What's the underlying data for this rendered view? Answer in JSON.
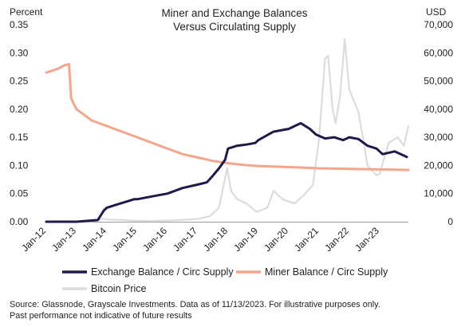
{
  "chart_data": {
    "type": "line",
    "title": "Miner and Exchange Balances",
    "subtitle": "Versus Circulating Supply",
    "y_left_label": "Percent",
    "y_right_label": "USD",
    "y_left_ticks": [
      "0.00",
      "0.05",
      "0.10",
      "0.15",
      "0.20",
      "0.25",
      "0.30",
      "0.35"
    ],
    "y_right_ticks": [
      "0",
      "10,000",
      "20,000",
      "30,000",
      "40,000",
      "50,000",
      "60,000",
      "70,000"
    ],
    "x_ticks": [
      "Jan-12",
      "Jan-13",
      "Jan-14",
      "Jan-15",
      "Jan-16",
      "Jan-17",
      "Jan-18",
      "Jan-19",
      "Jan-20",
      "Jan-21",
      "Jan-22",
      "Jan-23"
    ],
    "ylim_left": [
      0,
      0.35
    ],
    "ylim_right": [
      0,
      70000
    ],
    "xlim": [
      2012.0,
      2023.95
    ],
    "grid": false,
    "legend_position": "bottom",
    "series": [
      {
        "name": "Exchange Balance / Circ Supply",
        "axis": "left",
        "color": "#1f1a4a",
        "x": [
          2012.0,
          2013.0,
          2013.7,
          2013.9,
          2014.0,
          2014.3,
          2014.6,
          2014.9,
          2015.0,
          2015.5,
          2016.0,
          2016.5,
          2017.0,
          2017.3,
          2017.5,
          2017.7,
          2017.9,
          2018.0,
          2018.3,
          2018.6,
          2018.9,
          2019.0,
          2019.5,
          2020.0,
          2020.2,
          2020.4,
          2020.7,
          2020.9,
          2021.2,
          2021.5,
          2021.8,
          2022.0,
          2022.3,
          2022.6,
          2022.9,
          2023.1,
          2023.5,
          2023.9
        ],
        "y": [
          0.0,
          0.0,
          0.003,
          0.02,
          0.025,
          0.03,
          0.035,
          0.04,
          0.04,
          0.045,
          0.05,
          0.06,
          0.066,
          0.07,
          0.082,
          0.095,
          0.11,
          0.13,
          0.135,
          0.137,
          0.14,
          0.145,
          0.16,
          0.165,
          0.17,
          0.175,
          0.165,
          0.155,
          0.148,
          0.15,
          0.145,
          0.15,
          0.147,
          0.135,
          0.13,
          0.12,
          0.125,
          0.115
        ]
      },
      {
        "name": "Miner Balance / Circ Supply",
        "axis": "left",
        "color": "#f4a58a",
        "x": [
          2012.0,
          2012.4,
          2012.6,
          2012.75,
          2012.82,
          2012.9,
          2013.0,
          2013.5,
          2014.0,
          2014.5,
          2015.0,
          2015.5,
          2016.0,
          2016.5,
          2017.0,
          2017.5,
          2018.0,
          2018.5,
          2019.0,
          2020.0,
          2021.0,
          2022.0,
          2023.0,
          2023.95
        ],
        "y": [
          0.265,
          0.272,
          0.278,
          0.28,
          0.22,
          0.21,
          0.2,
          0.18,
          0.17,
          0.16,
          0.15,
          0.14,
          0.13,
          0.12,
          0.114,
          0.108,
          0.104,
          0.101,
          0.099,
          0.097,
          0.095,
          0.094,
          0.093,
          0.092
        ]
      },
      {
        "name": "Bitcoin Price",
        "axis": "right",
        "color": "#dcdcdc",
        "x": [
          2012.0,
          2013.0,
          2013.3,
          2013.5,
          2013.9,
          2014.0,
          2014.5,
          2015.0,
          2015.5,
          2016.0,
          2016.5,
          2017.0,
          2017.4,
          2017.7,
          2017.97,
          2018.1,
          2018.3,
          2018.6,
          2018.95,
          2019.3,
          2019.5,
          2019.8,
          2020.0,
          2020.2,
          2020.5,
          2020.8,
          2021.0,
          2021.2,
          2021.3,
          2021.45,
          2021.55,
          2021.7,
          2021.85,
          2022.0,
          2022.3,
          2022.45,
          2022.6,
          2022.9,
          2023.0,
          2023.3,
          2023.6,
          2023.8,
          2023.95
        ],
        "y": [
          5,
          13,
          100,
          100,
          1100,
          800,
          600,
          300,
          250,
          430,
          650,
          1000,
          2000,
          5000,
          19000,
          11000,
          8000,
          6500,
          3500,
          5000,
          11000,
          8000,
          7200,
          6500,
          9500,
          13000,
          29000,
          58000,
          59000,
          40000,
          35000,
          45000,
          65000,
          47000,
          39000,
          30000,
          20000,
          16500,
          17000,
          28000,
          30000,
          27000,
          34000
        ]
      }
    ]
  },
  "source_line1": "Source: Glassnode, Grayscale Investments. Data as of 11/13/2023. For illustrative purposes only.",
  "source_line2": "Past performance not indicative of future results"
}
